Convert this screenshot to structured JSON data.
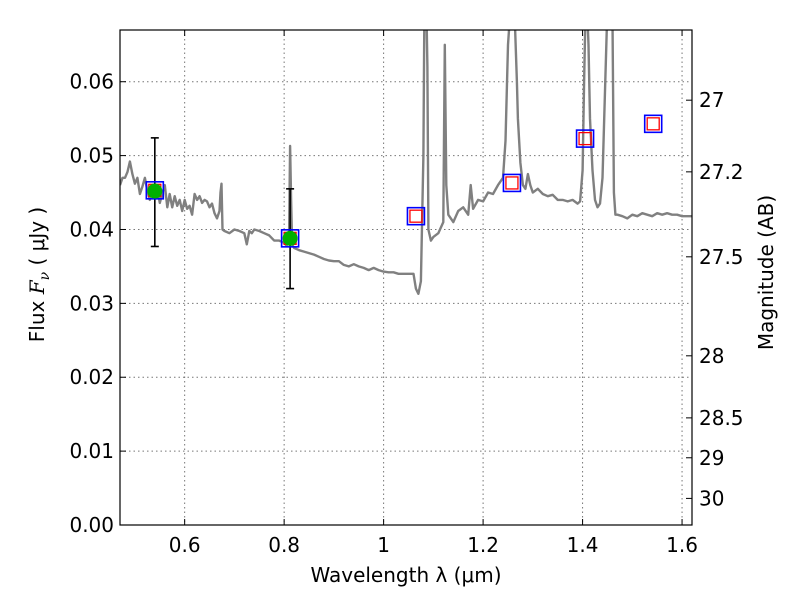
{
  "chart_data": {
    "type": "line",
    "xlabel": "Wavelength  λ (μm)",
    "ylabel_left_prefix": "Flux  ",
    "ylabel_left_symbol": "F",
    "ylabel_left_sub": "ν",
    "ylabel_left_unit": " ( μJy )",
    "ylabel_right": "Magnitude (AB)",
    "xlim": [
      0.47,
      1.62
    ],
    "ylim": [
      0.0,
      0.067
    ],
    "grid": true,
    "xticks": [
      0.6,
      0.8,
      1.0,
      1.2,
      1.4,
      1.6
    ],
    "xtick_labels": [
      "0.6",
      "0.8",
      "1",
      "1.2",
      "1.4",
      "1.6"
    ],
    "yticks": [
      0.0,
      0.01,
      0.02,
      0.03,
      0.04,
      0.05,
      0.06
    ],
    "ytick_labels": [
      "0.00",
      "0.01",
      "0.02",
      "0.03",
      "0.04",
      "0.05",
      "0.06"
    ],
    "right_ticks": [
      {
        "label": "27",
        "flux": 0.0575
      },
      {
        "label": "27.2",
        "flux": 0.0478
      },
      {
        "label": "27.5",
        "flux": 0.0363
      },
      {
        "label": "28",
        "flux": 0.0229
      },
      {
        "label": "28.5",
        "flux": 0.0145
      },
      {
        "label": "29",
        "flux": 0.0091
      },
      {
        "label": "30",
        "flux": 0.0036
      }
    ],
    "series": [
      {
        "kind": "model_spectrum",
        "color": "#808080",
        "x": [
          0.47,
          0.475,
          0.48,
          0.485,
          0.49,
          0.495,
          0.5,
          0.505,
          0.51,
          0.515,
          0.52,
          0.525,
          0.53,
          0.535,
          0.54,
          0.545,
          0.55,
          0.555,
          0.56,
          0.565,
          0.57,
          0.575,
          0.58,
          0.585,
          0.59,
          0.595,
          0.6,
          0.605,
          0.61,
          0.615,
          0.62,
          0.625,
          0.63,
          0.635,
          0.64,
          0.645,
          0.65,
          0.655,
          0.66,
          0.665,
          0.67,
          0.672,
          0.674,
          0.676,
          0.68,
          0.69,
          0.7,
          0.71,
          0.72,
          0.725,
          0.73,
          0.735,
          0.74,
          0.75,
          0.76,
          0.77,
          0.78,
          0.79,
          0.8,
          0.805,
          0.81,
          0.812,
          0.814,
          0.816,
          0.82,
          0.83,
          0.84,
          0.85,
          0.86,
          0.87,
          0.88,
          0.89,
          0.9,
          0.91,
          0.92,
          0.93,
          0.94,
          0.95,
          0.96,
          0.97,
          0.98,
          0.99,
          1.0,
          1.01,
          1.02,
          1.03,
          1.04,
          1.05,
          1.06,
          1.065,
          1.07,
          1.075,
          1.08,
          1.082,
          1.084,
          1.086,
          1.088,
          1.09,
          1.095,
          1.1,
          1.11,
          1.12,
          1.123,
          1.126,
          1.13,
          1.14,
          1.15,
          1.16,
          1.17,
          1.175,
          1.18,
          1.19,
          1.2,
          1.21,
          1.22,
          1.23,
          1.24,
          1.245,
          1.25,
          1.255,
          1.26,
          1.262,
          1.264,
          1.266,
          1.268,
          1.27,
          1.275,
          1.28,
          1.285,
          1.29,
          1.295,
          1.3,
          1.31,
          1.32,
          1.33,
          1.34,
          1.35,
          1.36,
          1.37,
          1.38,
          1.39,
          1.395,
          1.4,
          1.403,
          1.406,
          1.409,
          1.412,
          1.415,
          1.42,
          1.425,
          1.43,
          1.435,
          1.44,
          1.45,
          1.455,
          1.46,
          1.463,
          1.466,
          1.47,
          1.48,
          1.49,
          1.5,
          1.51,
          1.52,
          1.53,
          1.54,
          1.55,
          1.56,
          1.57,
          1.58,
          1.59,
          1.6,
          1.61,
          1.62
        ],
        "y": [
          0.046,
          0.047,
          0.047,
          0.0478,
          0.0492,
          0.0475,
          0.0462,
          0.047,
          0.0448,
          0.0458,
          0.047,
          0.0452,
          0.044,
          0.046,
          0.0443,
          0.0455,
          0.0436,
          0.0449,
          0.046,
          0.043,
          0.0448,
          0.043,
          0.0445,
          0.0432,
          0.044,
          0.0425,
          0.044,
          0.0428,
          0.0432,
          0.042,
          0.0448,
          0.044,
          0.0445,
          0.0436,
          0.044,
          0.0438,
          0.043,
          0.0435,
          0.0422,
          0.0415,
          0.0425,
          0.045,
          0.0462,
          0.04,
          0.0398,
          0.0395,
          0.04,
          0.0398,
          0.0395,
          0.038,
          0.0398,
          0.0395,
          0.04,
          0.0398,
          0.0395,
          0.0392,
          0.0385,
          0.0385,
          0.0382,
          0.0378,
          0.0395,
          0.0513,
          0.044,
          0.038,
          0.0375,
          0.0372,
          0.037,
          0.0368,
          0.0366,
          0.0363,
          0.036,
          0.0358,
          0.0357,
          0.0357,
          0.0352,
          0.035,
          0.0353,
          0.035,
          0.0348,
          0.0345,
          0.0348,
          0.0345,
          0.0343,
          0.0342,
          0.0342,
          0.034,
          0.034,
          0.034,
          0.034,
          0.032,
          0.0313,
          0.033,
          0.05,
          0.07,
          0.07,
          0.07,
          0.062,
          0.04,
          0.0385,
          0.039,
          0.0395,
          0.041,
          0.065,
          0.046,
          0.042,
          0.041,
          0.0425,
          0.043,
          0.042,
          0.046,
          0.0428,
          0.044,
          0.0438,
          0.045,
          0.0448,
          0.046,
          0.047,
          0.052,
          0.065,
          0.07,
          0.07,
          0.07,
          0.068,
          0.064,
          0.06,
          0.055,
          0.049,
          0.046,
          0.0455,
          0.0475,
          0.046,
          0.045,
          0.0455,
          0.0448,
          0.0445,
          0.0447,
          0.044,
          0.044,
          0.0438,
          0.044,
          0.0435,
          0.0438,
          0.048,
          0.06,
          0.07,
          0.07,
          0.065,
          0.055,
          0.048,
          0.044,
          0.043,
          0.0435,
          0.047,
          0.07,
          0.07,
          0.07,
          0.045,
          0.042,
          0.042,
          0.0418,
          0.0415,
          0.042,
          0.0418,
          0.0422,
          0.042,
          0.0418,
          0.0422,
          0.042,
          0.0422,
          0.042,
          0.042,
          0.0418,
          0.0418,
          0.0418
        ]
      },
      {
        "kind": "observed_points",
        "marker": "circle",
        "color": "#00b000",
        "points": [
          {
            "x": 0.54,
            "y": 0.0452,
            "yerr_low": 0.0075,
            "yerr_high": 0.0072
          },
          {
            "x": 0.812,
            "y": 0.0388,
            "yerr_low": 0.0068,
            "yerr_high": 0.0067
          }
        ]
      },
      {
        "kind": "model_photometry",
        "marker": "square",
        "edge_color": "#0000ff",
        "inner_edge_color": "#ff0000",
        "points": [
          {
            "x": 0.54,
            "y": 0.0453
          },
          {
            "x": 0.812,
            "y": 0.0388
          },
          {
            "x": 1.065,
            "y": 0.0418
          },
          {
            "x": 1.258,
            "y": 0.0463
          },
          {
            "x": 1.405,
            "y": 0.0523
          },
          {
            "x": 1.542,
            "y": 0.0543
          }
        ]
      }
    ]
  }
}
